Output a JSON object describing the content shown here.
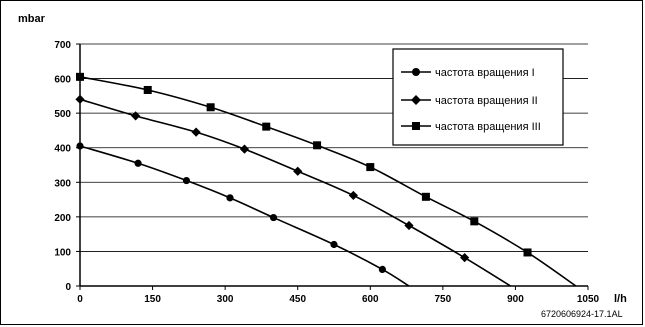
{
  "chart_data": {
    "type": "line",
    "ylabel": "mbar",
    "xlabel": "l/h",
    "xlim": [
      0,
      1050
    ],
    "ylim": [
      0,
      700
    ],
    "x_ticks": [
      0,
      150,
      300,
      450,
      600,
      750,
      900,
      1050
    ],
    "y_ticks": [
      0,
      100,
      200,
      300,
      400,
      500,
      600,
      700
    ],
    "grid": "horizontal",
    "legend_position": "top-right",
    "series": [
      {
        "name": "частота вращения I",
        "marker": "circle",
        "x": [
          0,
          120,
          220,
          310,
          400,
          525,
          625,
          680
        ],
        "y": [
          405,
          355,
          305,
          255,
          198,
          120,
          48,
          0
        ],
        "marker_count": 7
      },
      {
        "name": "частота вращения II",
        "marker": "diamond",
        "x": [
          0,
          115,
          240,
          340,
          450,
          565,
          680,
          795,
          890
        ],
        "y": [
          540,
          492,
          445,
          396,
          332,
          262,
          175,
          82,
          0
        ],
        "marker_count": 8
      },
      {
        "name": "частота вращения III",
        "marker": "square",
        "x": [
          0,
          140,
          270,
          385,
          490,
          600,
          715,
          815,
          925,
          1025
        ],
        "y": [
          605,
          567,
          517,
          461,
          407,
          344,
          258,
          187,
          97,
          0
        ],
        "marker_count": 9
      }
    ]
  },
  "footer_code": "6720606924-17.1AL"
}
